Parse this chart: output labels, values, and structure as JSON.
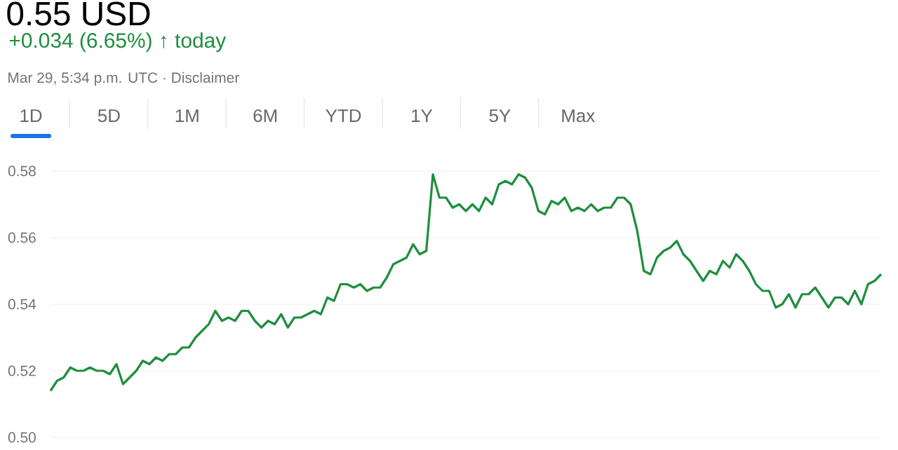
{
  "chart_data": {
    "type": "line",
    "title": "0.55 USD",
    "subtitle": "+0.034 (6.65%) ↑ today",
    "annotations": [
      "Mar 29, 5:34 p.m. UTC · Disclaimer",
      "1D",
      "5D",
      "1M",
      "6M",
      "YTD",
      "1Y",
      "5Y",
      "Max"
    ],
    "categories": [
      null,
      null,
      null,
      null,
      null,
      null,
      null,
      null,
      null,
      null,
      null,
      null,
      null,
      null,
      null,
      null,
      null,
      null,
      null,
      null,
      null,
      null,
      null,
      null,
      null,
      null,
      null,
      null,
      null,
      null,
      null,
      null,
      null,
      null,
      null,
      null,
      null,
      null,
      null,
      null,
      null,
      null,
      null,
      null,
      null,
      null,
      null,
      null,
      null,
      null,
      null,
      null,
      null,
      null,
      null,
      null,
      null,
      null,
      null,
      null,
      null,
      null,
      null,
      null,
      null,
      null,
      null,
      null,
      null,
      null,
      null,
      null,
      null,
      null,
      null,
      null,
      null,
      null,
      null,
      null,
      null,
      null,
      null,
      null,
      null,
      null,
      null,
      null,
      null,
      null,
      null,
      null,
      null,
      null,
      null,
      null,
      null,
      null,
      null,
      null,
      null,
      null,
      null,
      null,
      null,
      null,
      null,
      null,
      null,
      null,
      null,
      null,
      null,
      null,
      null,
      null,
      null,
      null,
      null,
      null,
      null,
      null,
      null,
      null,
      null,
      null,
      null
    ],
    "values": [
      0.514,
      0.517,
      0.518,
      0.521,
      0.52,
      0.52,
      0.521,
      0.52,
      0.52,
      0.519,
      0.522,
      0.516,
      0.518,
      0.52,
      0.523,
      0.522,
      0.524,
      0.523,
      0.525,
      0.525,
      0.527,
      0.527,
      0.53,
      0.532,
      0.534,
      0.538,
      0.535,
      0.536,
      0.535,
      0.538,
      0.538,
      0.535,
      0.533,
      0.535,
      0.534,
      0.537,
      0.533,
      0.536,
      0.536,
      0.537,
      0.538,
      0.537,
      0.542,
      0.541,
      0.546,
      0.546,
      0.545,
      0.546,
      0.544,
      0.545,
      0.545,
      0.548,
      0.552,
      0.553,
      0.554,
      0.558,
      0.555,
      0.556,
      0.579,
      0.572,
      0.572,
      0.569,
      0.57,
      0.568,
      0.57,
      0.568,
      0.572,
      0.57,
      0.576,
      0.577,
      0.576,
      0.579,
      0.578,
      0.575,
      0.568,
      0.567,
      0.571,
      0.57,
      0.572,
      0.568,
      0.569,
      0.568,
      0.57,
      0.568,
      0.569,
      0.569,
      0.572,
      0.572,
      0.57,
      0.562,
      0.55,
      0.549,
      0.554,
      0.556,
      0.557,
      0.559,
      0.555,
      0.553,
      0.55,
      0.547,
      0.55,
      0.549,
      0.553,
      0.551,
      0.555,
      0.553,
      0.55,
      0.546,
      0.544,
      0.544,
      0.539,
      0.54,
      0.543,
      0.539,
      0.543,
      0.543,
      0.545,
      0.542,
      0.539,
      0.542,
      0.542,
      0.54,
      0.544,
      0.54,
      0.546,
      0.547,
      0.549
    ],
    "color": "#1e8e3e",
    "ylim": [
      0.5,
      0.58
    ],
    "yticks": [
      {
        "value": 0.5,
        "label": "0.50"
      },
      0.52,
      0.54,
      0.56,
      0.58
    ],
    "grid": "y"
  }
}
